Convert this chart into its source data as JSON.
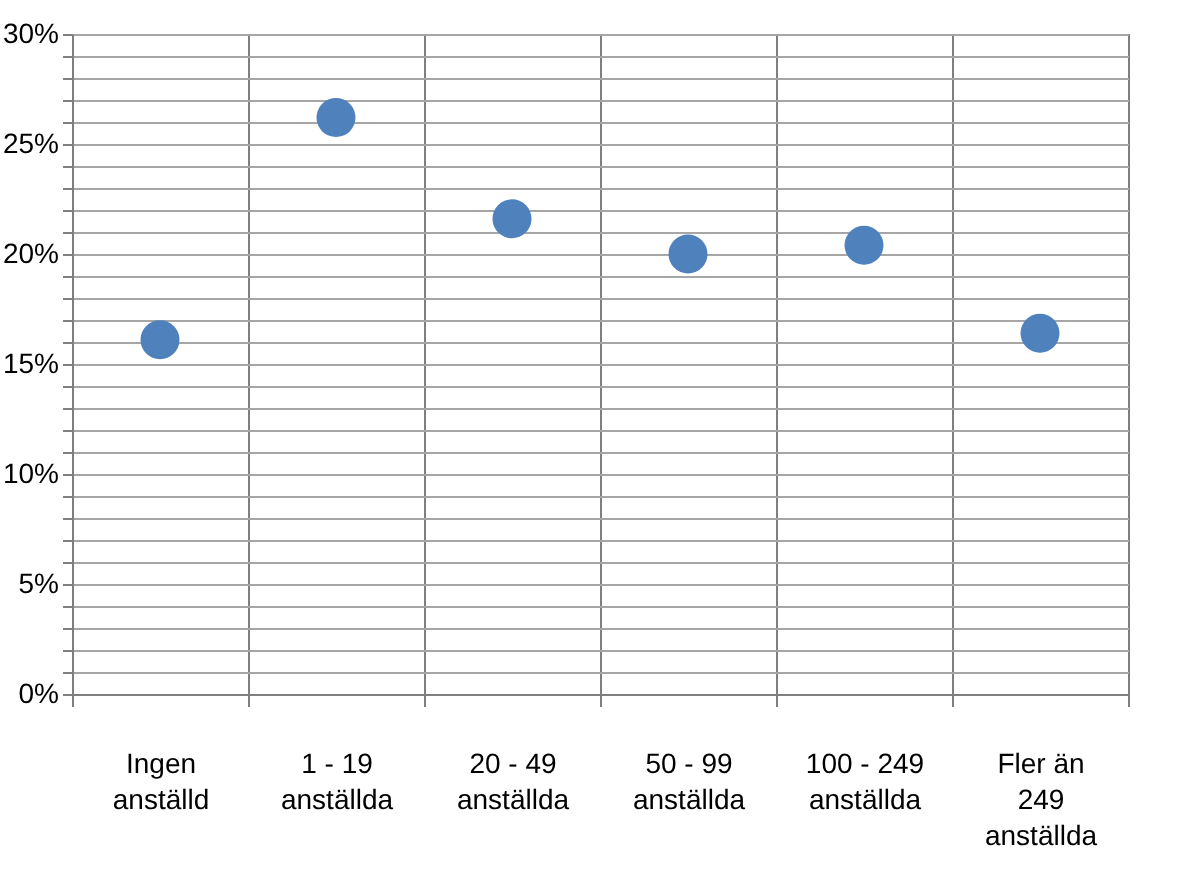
{
  "chart_data": {
    "type": "scatter",
    "categories": [
      "Ingen anställd",
      "1 - 19 anställda",
      "20 - 49 anställda",
      "50 - 99 anställda",
      "100 - 249 anställda",
      "Fler än 249 anställda"
    ],
    "series": [
      {
        "color": "#4f81bd",
        "values": [
          16.1,
          26.2,
          21.6,
          20.0,
          20.4,
          16.4
        ]
      }
    ],
    "ylim": [
      0,
      30
    ],
    "yticks": [
      {
        "value": 0,
        "label": "0%"
      },
      {
        "value": 1,
        "label": null
      },
      {
        "value": 2,
        "label": null
      },
      {
        "value": 3,
        "label": null
      },
      {
        "value": 4,
        "label": null
      },
      {
        "value": 5,
        "label": "5%"
      },
      {
        "value": 6,
        "label": null
      },
      {
        "value": 7,
        "label": null
      },
      {
        "value": 8,
        "label": null
      },
      {
        "value": 9,
        "label": null
      },
      {
        "value": 10,
        "label": "10%"
      },
      {
        "value": 11,
        "label": null
      },
      {
        "value": 12,
        "label": null
      },
      {
        "value": 13,
        "label": null
      },
      {
        "value": 14,
        "label": null
      },
      {
        "value": 15,
        "label": "15%"
      },
      {
        "value": 16,
        "label": null
      },
      {
        "value": 17,
        "label": null
      },
      {
        "value": 18,
        "label": null
      },
      {
        "value": 19,
        "label": null
      },
      {
        "value": 20,
        "label": "20%"
      },
      {
        "value": 21,
        "label": null
      },
      {
        "value": 22,
        "label": null
      },
      {
        "value": 23,
        "label": null
      },
      {
        "value": 24,
        "label": null
      },
      {
        "value": 25,
        "label": "25%"
      },
      {
        "value": 26,
        "label": null
      },
      {
        "value": 27,
        "label": null
      },
      {
        "value": 28,
        "label": null
      },
      {
        "value": 29,
        "label": null
      },
      {
        "value": 30,
        "label": "30%"
      }
    ],
    "grid": true,
    "marker": "circle"
  }
}
